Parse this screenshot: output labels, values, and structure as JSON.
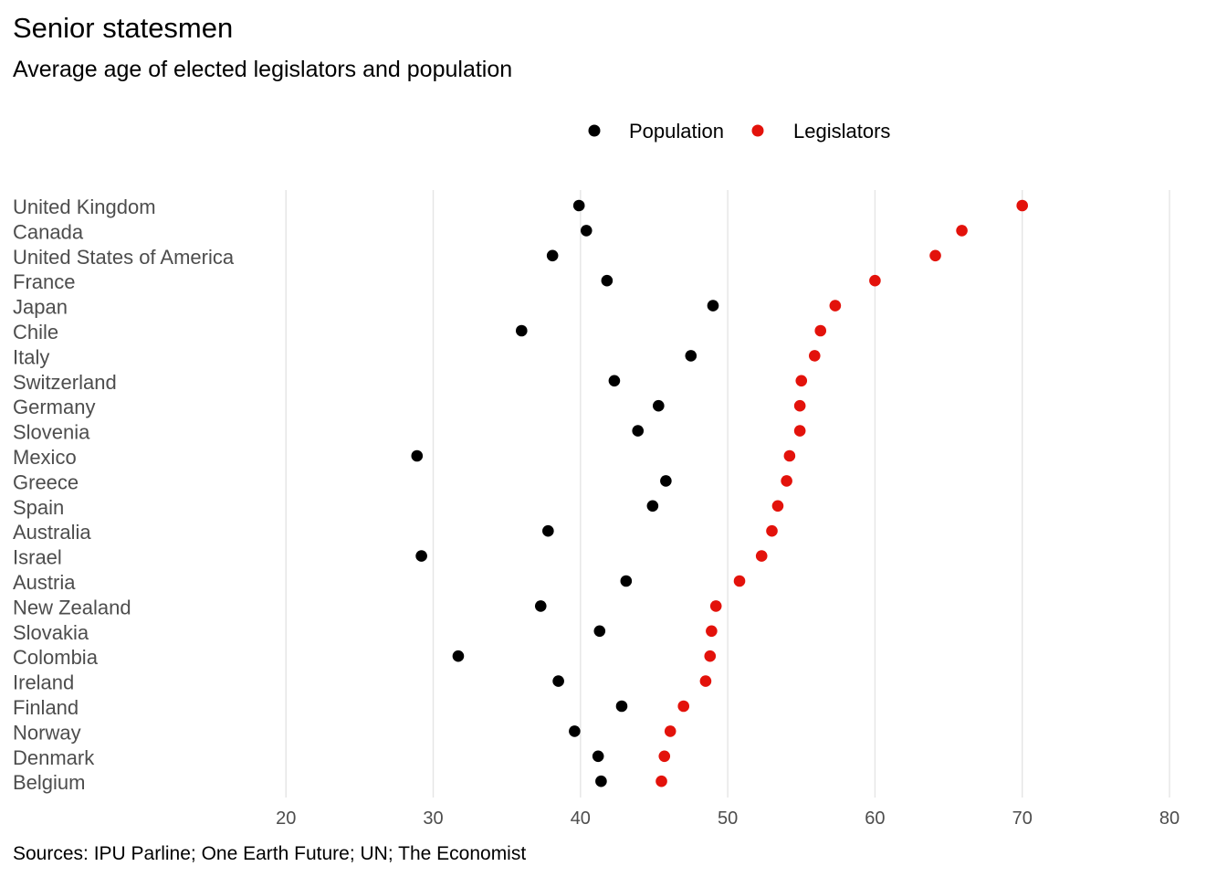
{
  "chart_data": {
    "type": "scatter",
    "title": "Senior statesmen",
    "subtitle": "Average age of elected legislators and population",
    "source": "Sources: IPU Parline; One Earth Future; UN; The Economist",
    "legend_position": "top",
    "grid": "vertical",
    "xlim": [
      10.5,
      80
    ],
    "xticks": [
      20,
      30,
      40,
      50,
      60,
      70,
      80
    ],
    "categories": [
      "United Kingdom",
      "Canada",
      "United States of America",
      "France",
      "Japan",
      "Chile",
      "Italy",
      "Switzerland",
      "Germany",
      "Slovenia",
      "Mexico",
      "Greece",
      "Spain",
      "Australia",
      "Israel",
      "Austria",
      "New Zealand",
      "Slovakia",
      "Colombia",
      "Ireland",
      "Finland",
      "Norway",
      "Denmark",
      "Belgium"
    ],
    "series": [
      {
        "name": "Population",
        "color": "#000000",
        "values": [
          39.9,
          40.4,
          38.1,
          41.8,
          49.0,
          36.0,
          47.5,
          42.3,
          45.3,
          43.9,
          28.9,
          45.8,
          44.9,
          37.8,
          29.2,
          43.1,
          37.3,
          41.3,
          31.7,
          38.5,
          42.8,
          39.6,
          41.2,
          41.4
        ]
      },
      {
        "name": "Legislators",
        "color": "#E3120B",
        "values": [
          70.0,
          65.9,
          64.1,
          60.0,
          57.3,
          56.3,
          55.9,
          55.0,
          54.9,
          54.9,
          54.2,
          54.0,
          53.4,
          53.0,
          52.3,
          50.8,
          49.2,
          48.9,
          48.8,
          48.5,
          47.0,
          46.1,
          45.7,
          45.5
        ]
      }
    ]
  }
}
